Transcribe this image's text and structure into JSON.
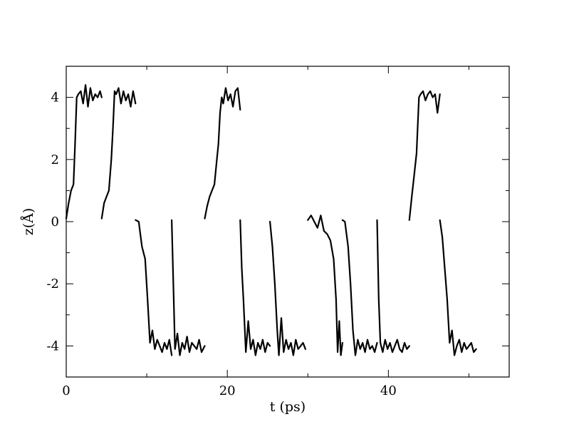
{
  "chart_data": {
    "type": "line",
    "title": "",
    "xlabel": "t (ps)",
    "ylabel": "z(Å)",
    "xlim": [
      0,
      55
    ],
    "ylim": [
      -5,
      5
    ],
    "x_ticks": [
      0,
      20,
      40
    ],
    "y_ticks": [
      4,
      2,
      0,
      -2,
      -4
    ],
    "grid": false,
    "line_color": "#000000",
    "series": [
      {
        "x": [
          0.0,
          0.3,
          0.6,
          0.9,
          1.1,
          1.3,
          1.5,
          1.8,
          2.1,
          2.4,
          2.7,
          3.0,
          3.3,
          3.6,
          3.9,
          4.2,
          4.4
        ],
        "y": [
          0.1,
          0.6,
          1.0,
          1.2,
          2.5,
          4.0,
          4.1,
          4.2,
          3.8,
          4.4,
          3.7,
          4.3,
          3.9,
          4.1,
          4.0,
          4.2,
          4.0
        ]
      },
      {
        "x": [
          4.4,
          4.7,
          5.0,
          5.3,
          5.6,
          5.8,
          6.0,
          6.2,
          6.5,
          6.8,
          7.1,
          7.4,
          7.7,
          8.0,
          8.3,
          8.6
        ],
        "y": [
          0.1,
          0.6,
          0.8,
          1.0,
          2.0,
          3.0,
          4.2,
          4.1,
          4.3,
          3.8,
          4.2,
          3.9,
          4.1,
          3.7,
          4.2,
          3.8
        ]
      },
      {
        "x": [
          8.6,
          9.0,
          9.4,
          9.8,
          10.1,
          10.4,
          10.7,
          11.0,
          11.3,
          11.6,
          11.9,
          12.2,
          12.5,
          12.8,
          13.1
        ],
        "y": [
          0.05,
          0.0,
          -0.8,
          -1.2,
          -2.5,
          -3.9,
          -3.5,
          -4.1,
          -3.8,
          -4.0,
          -4.2,
          -3.9,
          -4.1,
          -3.8,
          -4.3
        ]
      },
      {
        "x": [
          13.1,
          13.3,
          13.5,
          13.8,
          14.1,
          14.4,
          14.7,
          15.0,
          15.3,
          15.6,
          15.9,
          16.2,
          16.5,
          16.8,
          17.2
        ],
        "y": [
          0.05,
          -2.0,
          -4.1,
          -3.6,
          -4.3,
          -3.9,
          -4.1,
          -3.7,
          -4.2,
          -3.9,
          -4.0,
          -4.1,
          -3.8,
          -4.2,
          -4.0
        ]
      },
      {
        "x": [
          17.2,
          17.5,
          17.8,
          18.1,
          18.4,
          18.7,
          18.9,
          19.1,
          19.3,
          19.5,
          19.8,
          20.1,
          20.4,
          20.7,
          21.0,
          21.3,
          21.6
        ],
        "y": [
          0.1,
          0.5,
          0.8,
          1.0,
          1.2,
          2.0,
          2.5,
          3.5,
          4.0,
          3.8,
          4.3,
          3.9,
          4.1,
          3.7,
          4.2,
          4.3,
          3.6
        ]
      },
      {
        "x": [
          21.6,
          21.8,
          22.0,
          22.3,
          22.6,
          22.9,
          23.2,
          23.5,
          23.8,
          24.1,
          24.4,
          24.7,
          25.0,
          25.3
        ],
        "y": [
          0.05,
          -1.5,
          -2.5,
          -4.2,
          -3.2,
          -4.1,
          -3.8,
          -4.3,
          -3.9,
          -4.1,
          -3.8,
          -4.2,
          -3.9,
          -4.0
        ]
      },
      {
        "x": [
          25.3,
          25.6,
          25.9,
          26.2,
          26.4,
          26.7,
          27.0,
          27.3,
          27.6,
          27.9,
          28.2,
          28.5,
          28.8,
          29.1,
          29.4,
          29.7
        ],
        "y": [
          0.0,
          -0.8,
          -2.0,
          -3.5,
          -4.3,
          -3.1,
          -4.2,
          -3.8,
          -4.1,
          -3.9,
          -4.3,
          -3.8,
          -4.1,
          -4.0,
          -3.9,
          -4.1
        ]
      },
      {
        "x": [
          30.0,
          30.4,
          30.8,
          31.2,
          31.6,
          32.0,
          32.4,
          32.8,
          33.2,
          33.5,
          33.7,
          33.9,
          34.1,
          34.3
        ],
        "y": [
          0.05,
          0.2,
          0.0,
          -0.2,
          0.2,
          -0.3,
          -0.4,
          -0.6,
          -1.2,
          -2.5,
          -4.2,
          -3.2,
          -4.3,
          -3.9
        ]
      },
      {
        "x": [
          34.3,
          34.6,
          35.0,
          35.3,
          35.6,
          35.9,
          36.2,
          36.5,
          36.8,
          37.1,
          37.4,
          37.7,
          38.0,
          38.3,
          38.6
        ],
        "y": [
          0.05,
          0.0,
          -0.8,
          -2.0,
          -3.5,
          -4.3,
          -3.8,
          -4.1,
          -3.9,
          -4.2,
          -3.8,
          -4.1,
          -4.0,
          -4.2,
          -3.9
        ]
      },
      {
        "x": [
          38.6,
          38.8,
          39.0,
          39.3,
          39.6,
          39.9,
          40.2,
          40.5,
          40.8,
          41.1,
          41.4,
          41.7,
          42.0,
          42.3,
          42.6
        ],
        "y": [
          0.05,
          -2.5,
          -3.9,
          -4.2,
          -3.8,
          -4.1,
          -3.9,
          -4.2,
          -4.0,
          -3.8,
          -4.1,
          -4.2,
          -3.9,
          -4.1,
          -4.0
        ]
      },
      {
        "x": [
          42.6,
          42.9,
          43.2,
          43.5,
          43.8,
          44.0,
          44.3,
          44.6,
          44.9,
          45.2,
          45.5,
          45.8,
          46.1,
          46.4
        ],
        "y": [
          0.05,
          0.8,
          1.5,
          2.2,
          4.0,
          4.1,
          4.2,
          3.9,
          4.1,
          4.2,
          4.0,
          4.1,
          3.5,
          4.1
        ]
      },
      {
        "x": [
          46.4,
          46.7,
          47.0,
          47.3,
          47.6,
          47.9,
          48.2,
          48.5,
          48.8,
          49.1,
          49.4,
          49.7,
          50.0,
          50.3,
          50.6,
          50.9
        ],
        "y": [
          0.05,
          -0.5,
          -1.5,
          -2.5,
          -3.9,
          -3.5,
          -4.3,
          -4.0,
          -3.8,
          -4.2,
          -3.9,
          -4.1,
          -4.0,
          -3.9,
          -4.2,
          -4.1
        ]
      }
    ]
  }
}
